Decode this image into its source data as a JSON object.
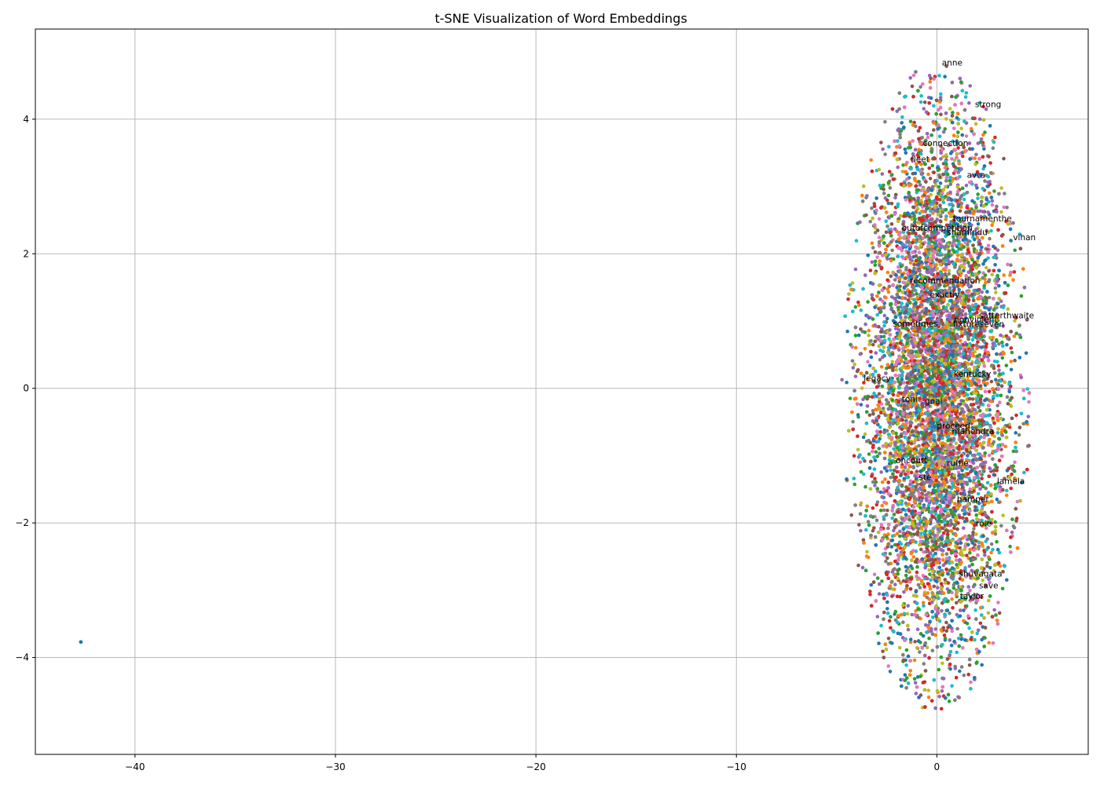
{
  "chart_data": {
    "type": "scatter",
    "title": "t-SNE Visualization of Word Embeddings",
    "xlabel": "",
    "ylabel": "",
    "xlim": [
      -44.97,
      7.55
    ],
    "ylim": [
      -5.44,
      5.34
    ],
    "xticks": [
      -40,
      -30,
      -20,
      -10,
      0
    ],
    "yticks": [
      -4,
      -2,
      0,
      2,
      4
    ],
    "xtick_labels": [
      "−40",
      "−30",
      "−20",
      "−10",
      "0"
    ],
    "ytick_labels": [
      "−4",
      "−2",
      "0",
      "2",
      "4"
    ],
    "grid": true,
    "point_cloud": {
      "approx_count": 9000,
      "center": [
        0,
        0
      ],
      "x_range": [
        -4.6,
        5.2
      ],
      "y_range": [
        -5.0,
        4.85
      ],
      "note": "dense elliptical cloud of points in ten repeating colors"
    },
    "colors": [
      "#1f77b4",
      "#ff7f0e",
      "#2ca02c",
      "#d62728",
      "#9467bd",
      "#8c564b",
      "#e377c2",
      "#7f7f7f",
      "#bcbd22",
      "#17becf"
    ],
    "outlier_points": [
      {
        "x": -42.7,
        "y": -3.77,
        "color": "#1f77b4"
      },
      {
        "x": -4.5,
        "y": -1.35,
        "color": "#1f77b4"
      }
    ],
    "labeled_points": [
      {
        "word": "anne",
        "x": 0.25,
        "y": 4.8
      },
      {
        "word": "strong",
        "x": 1.9,
        "y": 4.18
      },
      {
        "word": "connection",
        "x": -0.7,
        "y": 3.6
      },
      {
        "word": "fleet",
        "x": -1.3,
        "y": 3.36
      },
      {
        "word": "avra",
        "x": 1.5,
        "y": 3.13
      },
      {
        "word": "tournamenthe",
        "x": 0.8,
        "y": 2.48
      },
      {
        "word": "outofcompetition",
        "x": -1.75,
        "y": 2.34
      },
      {
        "word": "shamindu",
        "x": 0.5,
        "y": 2.28
      },
      {
        "word": "vihan",
        "x": 3.8,
        "y": 2.2
      },
      {
        "word": "recommendation",
        "x": -1.35,
        "y": 1.56
      },
      {
        "word": "exactly",
        "x": -0.35,
        "y": 1.35
      },
      {
        "word": "satterthwaite",
        "x": 2.1,
        "y": 1.04
      },
      {
        "word": "nonviolent",
        "x": 0.85,
        "y": 0.98
      },
      {
        "word": "fixtureseven",
        "x": 0.8,
        "y": 0.91
      },
      {
        "word": "sometimes",
        "x": -2.2,
        "y": 0.92
      },
      {
        "word": "kentucky",
        "x": 0.85,
        "y": 0.17
      },
      {
        "word": "legacy",
        "x": -3.65,
        "y": 0.11
      },
      {
        "word": "toni",
        "x": -1.75,
        "y": -0.2
      },
      {
        "word": "goal",
        "x": -0.6,
        "y": -0.23
      },
      {
        "word": "proceed",
        "x": 0.0,
        "y": -0.6
      },
      {
        "word": "mahendra",
        "x": 0.75,
        "y": -0.68
      },
      {
        "word": "oncourt",
        "x": -2.05,
        "y": -1.11
      },
      {
        "word": "ruffle",
        "x": 0.5,
        "y": -1.15
      },
      {
        "word": "ste",
        "x": -0.9,
        "y": -1.36
      },
      {
        "word": "lamela",
        "x": 3.0,
        "y": -1.42
      },
      {
        "word": "hamper",
        "x": 1.0,
        "y": -1.69
      },
      {
        "word": "role",
        "x": 1.95,
        "y": -2.05
      },
      {
        "word": "shuvagata",
        "x": 1.1,
        "y": -2.8
      },
      {
        "word": "save",
        "x": 2.1,
        "y": -2.97
      },
      {
        "word": "taylor",
        "x": 1.15,
        "y": -3.13
      }
    ]
  }
}
